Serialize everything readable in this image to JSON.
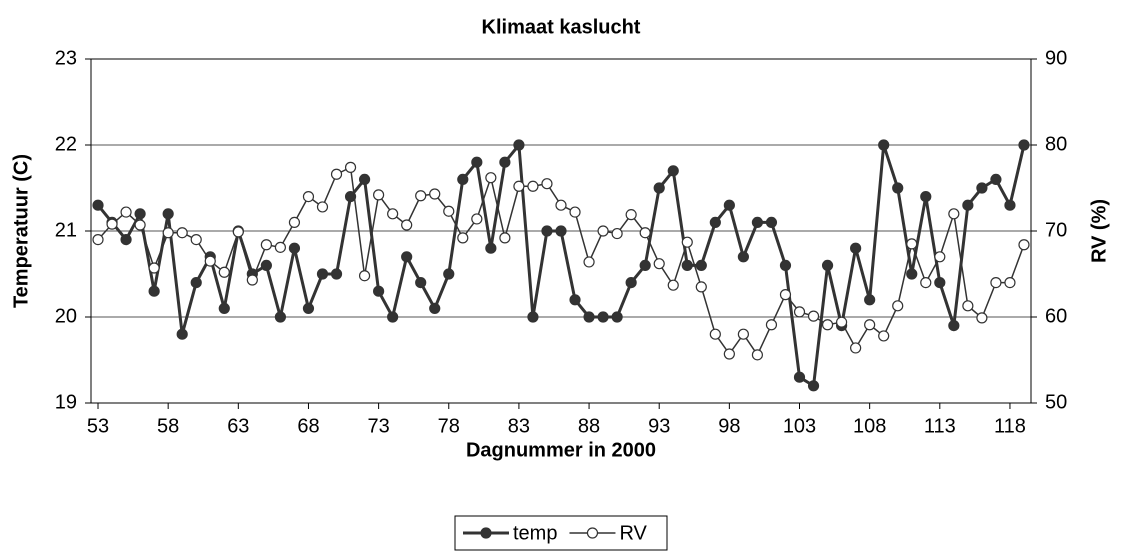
{
  "chart_data": {
    "type": "line",
    "title": "Klimaat kaslucht",
    "x_label": "Dagnummer in 2000",
    "y_label": "Temperatuur (C)",
    "y2_label": "RV (%)",
    "categories": [
      53,
      null,
      null,
      null,
      null,
      58,
      null,
      null,
      null,
      null,
      63,
      null,
      null,
      null,
      null,
      68,
      null,
      null,
      null,
      null,
      73,
      null,
      null,
      null,
      null,
      78,
      null,
      null,
      null,
      null,
      83,
      null,
      null,
      null,
      null,
      88,
      null,
      null,
      null,
      null,
      93,
      null,
      null,
      null,
      null,
      98,
      null,
      null,
      null,
      null,
      103,
      null,
      null,
      null,
      null,
      108,
      null,
      null,
      null,
      null,
      113,
      null,
      null,
      null,
      null,
      118,
      null
    ],
    "ylim": [
      19,
      23
    ],
    "yticks": [
      19,
      20,
      21,
      22,
      23
    ],
    "y2lim": [
      50,
      90
    ],
    "y2ticks": [
      50,
      60,
      70,
      80,
      90
    ],
    "grid": true,
    "legend": "bottom",
    "series": [
      {
        "name": "temp",
        "color": "#333333",
        "fill": "#333333",
        "values": [
          21.3,
          21.1,
          20.9,
          21.2,
          20.3,
          21.2,
          19.8,
          20.4,
          20.7,
          20.1,
          21.0,
          20.5,
          20.6,
          20.0,
          20.8,
          20.1,
          20.5,
          20.5,
          21.4,
          21.6,
          20.3,
          20.0,
          20.7,
          20.4,
          20.1,
          20.5,
          21.6,
          21.8,
          20.8,
          21.8,
          22.0,
          20.0,
          21.0,
          21.0,
          20.2,
          20.0,
          20.0,
          20.0,
          20.4,
          20.6,
          21.5,
          21.7,
          20.6,
          20.6,
          21.1,
          21.3,
          20.7,
          21.1,
          21.1,
          20.6,
          19.3,
          19.2,
          20.6,
          19.9,
          20.8,
          20.2,
          22.0,
          21.5,
          20.5,
          21.4,
          20.4,
          19.9,
          21.3,
          21.5,
          21.6,
          21.3,
          22.0
        ]
      },
      {
        "name": "RV",
        "color": "#333333",
        "fill": "#ffffff",
        "axis": "y2",
        "values": [
          69.0,
          70.8,
          72.2,
          70.7,
          65.7,
          69.8,
          69.8,
          69.0,
          66.5,
          65.2,
          69.9,
          64.3,
          68.4,
          68.1,
          71.0,
          74.0,
          72.8,
          76.6,
          77.4,
          64.8,
          74.2,
          72.0,
          70.7,
          74.1,
          74.3,
          72.3,
          69.2,
          71.4,
          76.2,
          69.2,
          75.2,
          75.2,
          75.5,
          73.0,
          72.2,
          66.4,
          70.0,
          69.7,
          71.9,
          69.8,
          66.2,
          63.7,
          68.7,
          63.5,
          58.0,
          55.7,
          58.0,
          55.6,
          59.1,
          62.6,
          60.6,
          60.1,
          59.1,
          59.4,
          56.4,
          59.1,
          57.8,
          61.3,
          68.5,
          64.0,
          67.0,
          72.0,
          61.3,
          59.9,
          64.0,
          64.0,
          68.4
        ]
      }
    ]
  }
}
